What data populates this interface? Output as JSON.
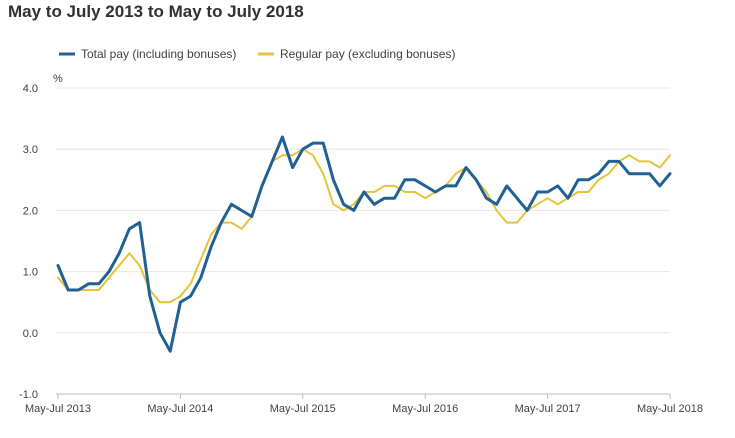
{
  "chart_data": {
    "type": "line",
    "title": "May to July 2013 to May to July 2018",
    "ylabel": "%",
    "xlabel": "",
    "ylim": [
      -1.0,
      4.0
    ],
    "yticks": [
      "4.0",
      "3.0",
      "2.0",
      "1.0",
      "0.0",
      "-1.0"
    ],
    "grid": true,
    "legend_position": "top",
    "x_tick_labels": [
      "May-Jul 2013",
      "May-Jul 2014",
      "May-Jul 2015",
      "May-Jul 2016",
      "May-Jul 2017",
      "May-Jul 2018"
    ],
    "x_tick_indices": [
      0,
      12,
      24,
      36,
      48,
      60
    ],
    "series": [
      {
        "name": "Total pay (including bonuses)",
        "color": "#206095",
        "values": [
          1.1,
          0.7,
          0.7,
          0.8,
          0.8,
          1.0,
          1.3,
          1.7,
          1.8,
          0.6,
          0.0,
          -0.3,
          0.5,
          0.6,
          0.9,
          1.4,
          1.8,
          2.1,
          2.0,
          1.9,
          2.4,
          2.8,
          3.2,
          2.7,
          3.0,
          3.1,
          3.1,
          2.5,
          2.1,
          2.0,
          2.3,
          2.1,
          2.2,
          2.2,
          2.5,
          2.5,
          2.4,
          2.3,
          2.4,
          2.4,
          2.7,
          2.5,
          2.2,
          2.1,
          2.4,
          2.2,
          2.0,
          2.3,
          2.3,
          2.4,
          2.2,
          2.5,
          2.5,
          2.6,
          2.8,
          2.8,
          2.6,
          2.6,
          2.6,
          2.4,
          2.6
        ]
      },
      {
        "name": "Regular pay (excluding bonuses)",
        "color": "#e4c43a",
        "values": [
          0.9,
          0.7,
          0.7,
          0.7,
          0.7,
          0.9,
          1.1,
          1.3,
          1.1,
          0.7,
          0.5,
          0.5,
          0.6,
          0.8,
          1.2,
          1.6,
          1.8,
          1.8,
          1.7,
          1.9,
          2.4,
          2.8,
          2.9,
          2.9,
          3.0,
          2.9,
          2.6,
          2.1,
          2.0,
          2.1,
          2.3,
          2.3,
          2.4,
          2.4,
          2.3,
          2.3,
          2.2,
          2.3,
          2.4,
          2.6,
          2.7,
          2.5,
          2.3,
          2.0,
          1.8,
          1.8,
          2.0,
          2.1,
          2.2,
          2.1,
          2.2,
          2.3,
          2.3,
          2.5,
          2.6,
          2.8,
          2.9,
          2.8,
          2.8,
          2.7,
          2.9
        ]
      }
    ]
  }
}
